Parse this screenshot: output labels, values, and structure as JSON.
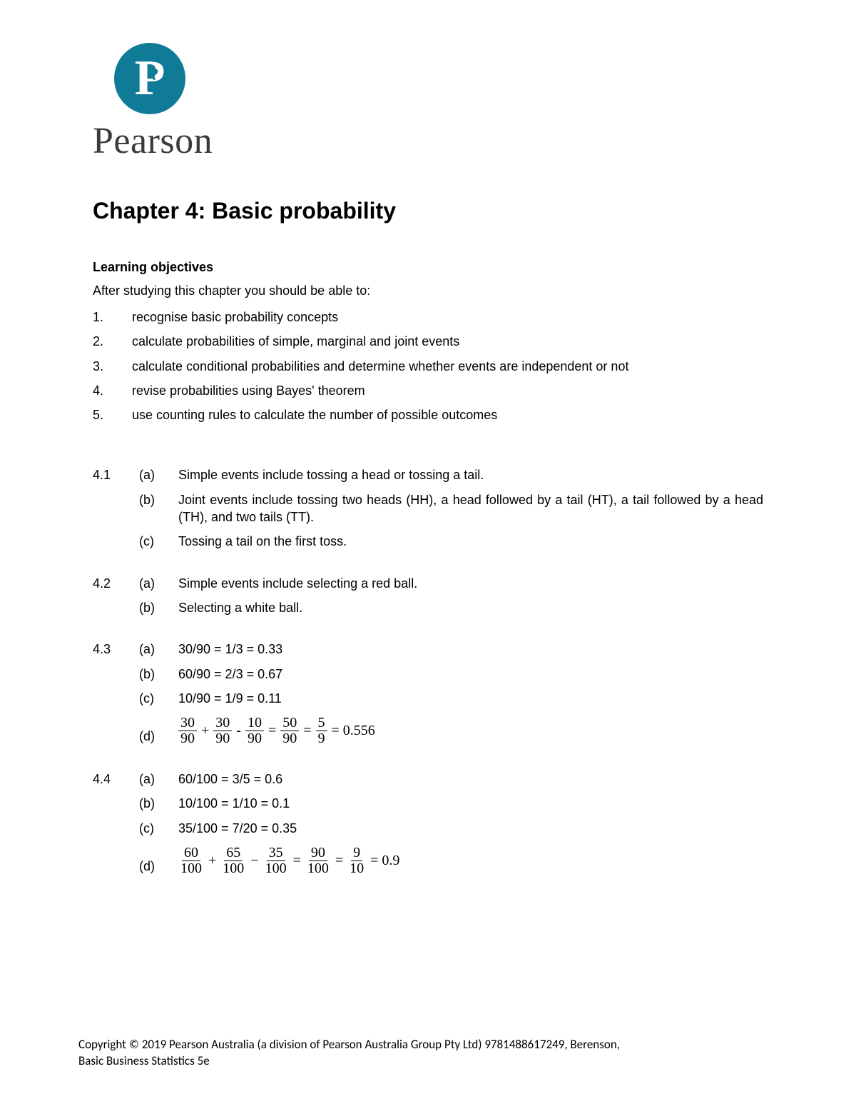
{
  "brand": {
    "logo_letter": "P",
    "name": "Pearson",
    "circle_color": "#107b97",
    "text_color": "#3b3b3b"
  },
  "chapter_title": "Chapter 4: Basic probability",
  "objectives_heading": "Learning objectives",
  "objectives_intro": "After studying this chapter you should be able to:",
  "objectives": [
    {
      "n": "1.",
      "text": "recognise basic probability concepts"
    },
    {
      "n": "2.",
      "text": "calculate probabilities of simple, marginal and joint events"
    },
    {
      "n": "3.",
      "text": "calculate conditional probabilities and determine whether events are independent or not"
    },
    {
      "n": "4.",
      "text": "revise probabilities using Bayes' theorem"
    },
    {
      "n": "5.",
      "text": "use counting rules to calculate the number of possible outcomes"
    }
  ],
  "q41": {
    "num": "4.1",
    "a_label": "(a)",
    "a_text": "Simple events include tossing a head or tossing a tail.",
    "b_label": "(b)",
    "b_text": "Joint events include tossing two heads (HH), a head followed by a tail (HT), a tail followed by a head (TH), and two tails (TT).",
    "c_label": "(c)",
    "c_text": "Tossing a tail on the first toss."
  },
  "q42": {
    "num": "4.2",
    "a_label": "(a)",
    "a_text": "Simple events include selecting a red ball.",
    "b_label": "(b)",
    "b_text": "Selecting a white ball."
  },
  "q43": {
    "num": "4.3",
    "a_label": "(a)",
    "a_text": "30/90 = 1/3 = 0.33",
    "b_label": "(b)",
    "b_text": "60/90 = 2/3 = 0.67",
    "c_label": "(c)",
    "c_text": "10/90 = 1/9 = 0.11",
    "d_label": "(d)",
    "d_eq": {
      "terms": [
        {
          "num": "30",
          "den": "90"
        },
        {
          "op": "+"
        },
        {
          "num": "30",
          "den": "90"
        },
        {
          "op": "-"
        },
        {
          "num": "10",
          "den": "90"
        },
        {
          "op": "="
        },
        {
          "num": "50",
          "den": "90"
        },
        {
          "op": "="
        },
        {
          "num": "5",
          "den": "9"
        }
      ],
      "result": "= 0.556"
    }
  },
  "q44": {
    "num": "4.4",
    "a_label": "(a)",
    "a_text": "60/100 = 3/5 = 0.6",
    "b_label": "(b)",
    "b_text": "10/100 = 1/10 = 0.1",
    "c_label": "(c)",
    "c_text": "35/100 = 7/20 = 0.35",
    "d_label": "(d)",
    "d_eq": {
      "terms": [
        {
          "num": "60",
          "den": "100"
        },
        {
          "op": "+"
        },
        {
          "num": "65",
          "den": "100"
        },
        {
          "op": "−"
        },
        {
          "num": "35",
          "den": "100"
        },
        {
          "op": "="
        },
        {
          "num": "90",
          "den": "100"
        },
        {
          "op": "="
        },
        {
          "num": "9",
          "den": "10"
        }
      ],
      "result": "= 0.9"
    }
  },
  "footer_line1": "Copyright © 2019 Pearson Australia (a division of Pearson Australia Group Pty Ltd) 9781488617249, Berenson,",
  "footer_line2": "Basic Business Statistics 5e"
}
